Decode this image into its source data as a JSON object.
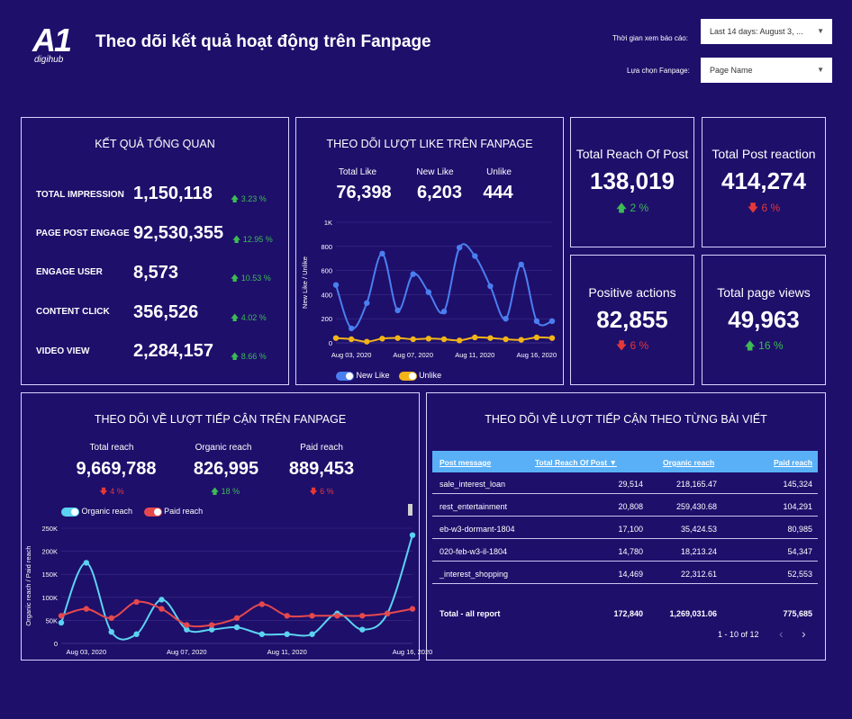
{
  "header": {
    "logo_big": "A1",
    "logo_small": "digihub",
    "title": "Theo dõi kết quả hoạt động trên Fanpage",
    "filter_date_label": "Thời gian xem báo cáo:",
    "filter_date_value": "Last 14 days: August 3, ...",
    "filter_page_label": "Lựa chọn Fanpage:",
    "filter_page_value": "Page Name"
  },
  "overview": {
    "title": "KẾT QUẢ TỔNG QUAN",
    "rows": [
      {
        "label": "TOTAL IMPRESSION",
        "value": "1,150,118",
        "pct": "3.23 %"
      },
      {
        "label": "PAGE POST ENGAGE",
        "value": "92,530,355",
        "pct": "12.95 %"
      },
      {
        "label": "ENGAGE USER",
        "value": "8,573",
        "pct": "10.53 %"
      },
      {
        "label": "CONTENT CLICK",
        "value": "356,526",
        "pct": "4.02 %"
      },
      {
        "label": "VIDEO VIEW",
        "value": "2,284,157",
        "pct": "8.66 %"
      }
    ]
  },
  "likes": {
    "title": "THEO DÕI LƯỢT LIKE TRÊN FANPAGE",
    "total_like_label": "Total Like",
    "total_like_value": "76,398",
    "new_like_label": "New Like",
    "new_like_value": "6,203",
    "unlike_label": "Unlike",
    "unlike_value": "444",
    "legend_new_like": "New Like",
    "legend_unlike": "Unlike"
  },
  "kpis": {
    "reach": {
      "title": "Total Reach Of Post",
      "value": "138,019",
      "delta": "2 %"
    },
    "reaction": {
      "title": "Total Post reaction",
      "value": "414,274",
      "delta": "6 %"
    },
    "positive": {
      "title": "Positive actions",
      "value": "82,855",
      "delta": "6 %"
    },
    "views": {
      "title": "Total page views",
      "value": "49,963",
      "delta": "16 %"
    }
  },
  "reach": {
    "title": "THEO DÕI VỀ LƯỢT TIẾP CẬN TRÊN FANPAGE",
    "total_label": "Total reach",
    "total_value": "9,669,788",
    "total_delta": "4 %",
    "organic_label": "Organic reach",
    "organic_value": "826,995",
    "organic_delta": "18 %",
    "paid_label": "Paid reach",
    "paid_value": "889,453",
    "paid_delta": "6 %",
    "legend_organic": "Organic reach",
    "legend_paid": "Paid reach"
  },
  "posts": {
    "title": "THEO DÕI VỀ LƯỢT TIẾP CẬN THEO TỪNG BÀI VIẾT",
    "col_message": "Post message",
    "col_reach": "Total Reach Of Post ▼",
    "col_organic": "Organic reach",
    "col_paid": "Paid reach",
    "rows": [
      [
        "sale_interest_loan",
        "29,514",
        "218,165.47",
        "145,324"
      ],
      [
        "rest_entertainment",
        "20,808",
        "259,430.68",
        "104,291"
      ],
      [
        "eb-w3-dormant-1804",
        "17,100",
        "35,424.53",
        "80,985"
      ],
      [
        "020-feb-w3-il-1804",
        "14,780",
        "18,213.24",
        "54,347"
      ],
      [
        "_interest_shopping",
        "14,469",
        "22,312.61",
        "52,553"
      ]
    ],
    "total_label": "Total - all report",
    "total_reach": "172,840",
    "total_organic": "1,269,031.06",
    "total_paid": "775,685",
    "pagination": "1 - 10 of 12"
  },
  "chart_data": [
    {
      "type": "line",
      "title": "THEO DÕI LƯỢT LIKE TRÊN FANPAGE",
      "ylabel": "New Like / Unlike",
      "ylim": [
        0,
        1000
      ],
      "yticks": [
        "0",
        "200",
        "400",
        "600",
        "800",
        "1K"
      ],
      "x_tick_labels": [
        "Aug 03, 2020",
        "Aug 07, 2020",
        "Aug 11, 2020",
        "Aug 16, 2020"
      ],
      "x": [
        "Aug 02",
        "Aug 03",
        "Aug 04",
        "Aug 05",
        "Aug 06",
        "Aug 07",
        "Aug 08",
        "Aug 09",
        "Aug 10",
        "Aug 11",
        "Aug 12",
        "Aug 13",
        "Aug 14",
        "Aug 15",
        "Aug 16"
      ],
      "series": [
        {
          "name": "New Like",
          "color": "#4a7ff0",
          "values": [
            480,
            120,
            330,
            740,
            270,
            570,
            420,
            260,
            790,
            720,
            470,
            200,
            650,
            180,
            180
          ]
        },
        {
          "name": "Unlike",
          "color": "#f2b419",
          "values": [
            40,
            30,
            10,
            35,
            40,
            30,
            35,
            30,
            20,
            45,
            40,
            30,
            25,
            45,
            40
          ]
        }
      ]
    },
    {
      "type": "line",
      "title": "THEO DÕI VỀ LƯỢT TIẾP CẬN TRÊN FANPAGE",
      "ylabel": "Organic reach / Paid reach",
      "ylim": [
        0,
        250000
      ],
      "yticks": [
        "0",
        "50K",
        "100K",
        "150K",
        "200K",
        "250K"
      ],
      "x_tick_labels": [
        "Aug 03, 2020",
        "Aug 07, 2020",
        "Aug 11, 2020",
        "Aug 16, 2020"
      ],
      "x": [
        "Aug 02",
        "Aug 03",
        "Aug 04",
        "Aug 05",
        "Aug 06",
        "Aug 07",
        "Aug 08",
        "Aug 09",
        "Aug 10",
        "Aug 11",
        "Aug 12",
        "Aug 13",
        "Aug 14",
        "Aug 15",
        "Aug 16"
      ],
      "series": [
        {
          "name": "Organic reach",
          "color": "#5cd2f0",
          "values": [
            45000,
            175000,
            25000,
            20000,
            95000,
            30000,
            30000,
            35000,
            20000,
            20000,
            20000,
            65000,
            30000,
            65000,
            235000
          ]
        },
        {
          "name": "Paid reach",
          "color": "#e5484d",
          "values": [
            60000,
            75000,
            55000,
            90000,
            75000,
            40000,
            40000,
            55000,
            85000,
            60000,
            60000,
            60000,
            60000,
            65000,
            75000
          ]
        }
      ]
    }
  ]
}
